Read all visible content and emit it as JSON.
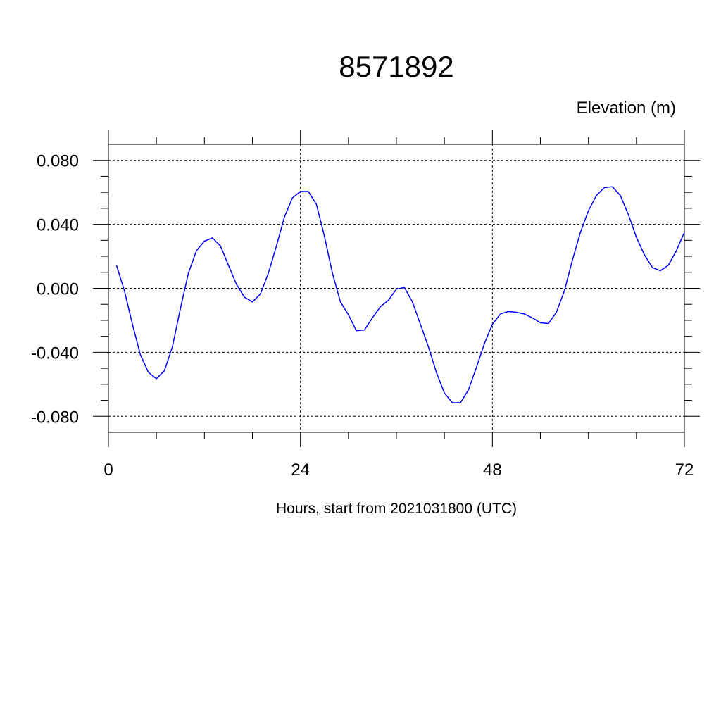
{
  "chart_data": {
    "type": "line",
    "title": "8571892",
    "ylabel": "Elevation (m)",
    "xlabel": "Hours, start from 2021031800 (UTC)",
    "xlim": [
      0,
      72
    ],
    "ylim": [
      -0.09,
      0.09
    ],
    "x_ticks": [
      0,
      24,
      48,
      72
    ],
    "x_tick_labels": [
      "0",
      "24",
      "48",
      "72"
    ],
    "y_ticks": [
      -0.08,
      -0.04,
      0.0,
      0.04,
      0.08
    ],
    "y_tick_labels": [
      "-0.080",
      "-0.040",
      "0.000",
      "0.040",
      "0.080"
    ],
    "grid": true,
    "line_color": "#0000ff",
    "series": [
      {
        "x": [
          1,
          2,
          3,
          4,
          5,
          6,
          7,
          8,
          9,
          10,
          11,
          12,
          13,
          14,
          15,
          16,
          17,
          18,
          19,
          20,
          21,
          22,
          23,
          24,
          25,
          26,
          27,
          28,
          29,
          30,
          31,
          32,
          33,
          34,
          35,
          36,
          37,
          38,
          39,
          40,
          41,
          42,
          43,
          44,
          45,
          46,
          47,
          48,
          49,
          50,
          51,
          52,
          53,
          54,
          55,
          56,
          57,
          58,
          59,
          60,
          61,
          62,
          63,
          64,
          65,
          66,
          67,
          68,
          69,
          70,
          71,
          72
        ],
        "y": [
          0.0145,
          -0.0015,
          -0.0225,
          -0.0415,
          -0.0525,
          -0.0565,
          -0.0515,
          -0.0365,
          -0.0125,
          0.0095,
          0.0235,
          0.0295,
          0.0315,
          0.0265,
          0.0145,
          0.0025,
          -0.0055,
          -0.0085,
          -0.0035,
          0.0095,
          0.0265,
          0.0445,
          0.0565,
          0.0605,
          0.0605,
          0.0525,
          0.0325,
          0.0095,
          -0.0085,
          -0.0165,
          -0.0265,
          -0.026,
          -0.0185,
          -0.0115,
          -0.0075,
          -0.0005,
          0.0005,
          -0.0085,
          -0.0225,
          -0.0365,
          -0.0525,
          -0.0655,
          -0.0715,
          -0.0715,
          -0.0635,
          -0.0495,
          -0.0345,
          -0.0225,
          -0.016,
          -0.0145,
          -0.015,
          -0.016,
          -0.0185,
          -0.0215,
          -0.022,
          -0.015,
          -0.0015,
          0.0175,
          0.035,
          0.0485,
          0.058,
          0.063,
          0.0635,
          0.058,
          0.046,
          0.032,
          0.021,
          0.013,
          0.011,
          0.0145,
          0.0235,
          0.035
        ]
      }
    ]
  }
}
